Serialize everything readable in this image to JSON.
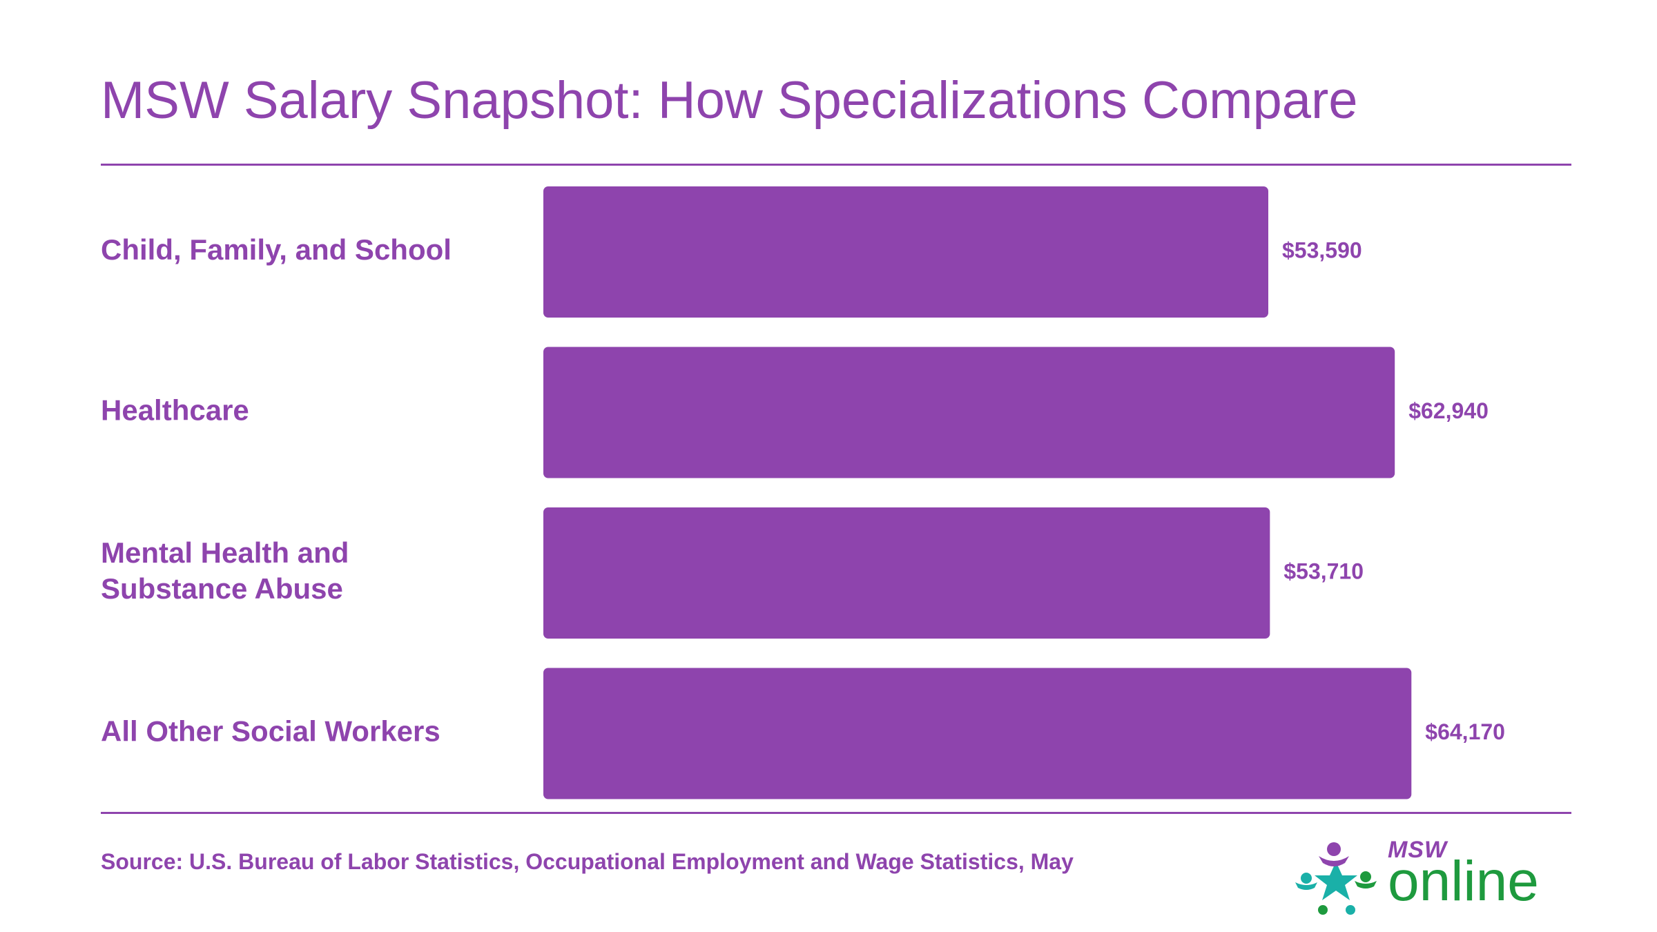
{
  "title": "MSW Salary Snapshot: How Specializations Compare",
  "source": "Source: U.S. Bureau of Labor Statistics, Occupational Employment and Wage Statistics, May",
  "logo": {
    "line1": "MSW",
    "line2": "online",
    "colors": {
      "purple": "#8e44ad",
      "green": "#1e9a3e",
      "teal": "#1ab0a8"
    }
  },
  "colors": {
    "accent": "#8e44ad",
    "bar": "#8e44ad",
    "background": "#ffffff"
  },
  "chart_data": {
    "type": "bar",
    "orientation": "horizontal",
    "categories": [
      [
        "Child, Family, and School"
      ],
      [
        "Healthcare"
      ],
      [
        "Mental Health and",
        "Substance Abuse"
      ],
      [
        "All Other Social Workers"
      ]
    ],
    "values": [
      53590,
      62940,
      53710,
      64170
    ],
    "value_labels": [
      "$53,590",
      "$62,940",
      "$53,710",
      "$64,170"
    ],
    "xlim": [
      0,
      75000
    ],
    "grid": false,
    "axes_visible": false,
    "legend": "none"
  }
}
